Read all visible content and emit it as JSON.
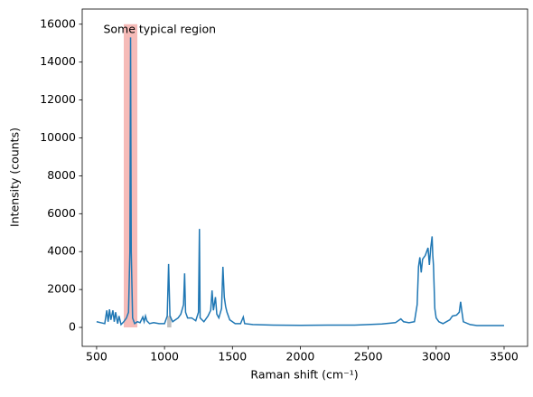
{
  "chart_data": {
    "type": "line",
    "xlabel": "Raman shift (cm⁻¹)",
    "ylabel": "Intensity (counts)",
    "annotation": {
      "text": "Some typical region",
      "x": 550,
      "y": 15700
    },
    "spans": [
      {
        "xmin": 700,
        "xmax": 800,
        "ymin": 0,
        "ymax": 16000,
        "color": "#f6bbb8"
      },
      {
        "xmin": 1020,
        "xmax": 1050,
        "ymin": 0,
        "ymax": 600,
        "color": "#bfbfbf"
      }
    ],
    "color": "#1f77b4",
    "x": [
      500,
      530,
      560,
      575,
      585,
      595,
      605,
      620,
      630,
      640,
      655,
      665,
      680,
      700,
      720,
      735,
      745,
      750,
      755,
      765,
      780,
      800,
      820,
      840,
      850,
      860,
      870,
      890,
      920,
      960,
      1000,
      1020,
      1030,
      1040,
      1060,
      1080,
      1100,
      1120,
      1140,
      1148,
      1155,
      1170,
      1200,
      1230,
      1250,
      1257,
      1262,
      1290,
      1320,
      1340,
      1350,
      1360,
      1375,
      1385,
      1400,
      1420,
      1430,
      1440,
      1450,
      1460,
      1480,
      1520,
      1560,
      1580,
      1590,
      1650,
      1800,
      2000,
      2200,
      2400,
      2600,
      2700,
      2740,
      2760,
      2800,
      2840,
      2860,
      2870,
      2880,
      2890,
      2900,
      2920,
      2940,
      2950,
      2960,
      2970,
      2975,
      2980,
      2990,
      3000,
      3020,
      3050,
      3100,
      3120,
      3150,
      3170,
      3180,
      3190,
      3200,
      3250,
      3300,
      3400,
      3500
    ],
    "values": [
      300,
      250,
      200,
      900,
      300,
      950,
      400,
      900,
      300,
      800,
      200,
      600,
      150,
      300,
      500,
      800,
      4000,
      15300,
      4000,
      500,
      200,
      300,
      250,
      550,
      300,
      600,
      350,
      200,
      250,
      200,
      200,
      600,
      3350,
      600,
      300,
      400,
      500,
      700,
      1200,
      2850,
      800,
      500,
      500,
      350,
      800,
      5200,
      500,
      300,
      600,
      900,
      1950,
      900,
      1600,
      700,
      500,
      1000,
      3200,
      1600,
      1100,
      800,
      400,
      200,
      200,
      550,
      200,
      150,
      120,
      110,
      120,
      120,
      180,
      250,
      450,
      300,
      250,
      300,
      1200,
      3200,
      3700,
      2900,
      3600,
      3800,
      4200,
      3300,
      4200,
      4800,
      3800,
      3300,
      1000,
      500,
      300,
      200,
      400,
      600,
      650,
      800,
      1350,
      800,
      300,
      150,
      100,
      100,
      100
    ],
    "xlim": [
      394,
      3673
    ],
    "ylim": [
      -1000,
      16800
    ],
    "xticks": [
      500,
      1000,
      1500,
      2000,
      2500,
      3000,
      3500
    ],
    "yticks": [
      0,
      2000,
      4000,
      6000,
      8000,
      10000,
      12000,
      14000,
      16000
    ],
    "grid": false
  }
}
